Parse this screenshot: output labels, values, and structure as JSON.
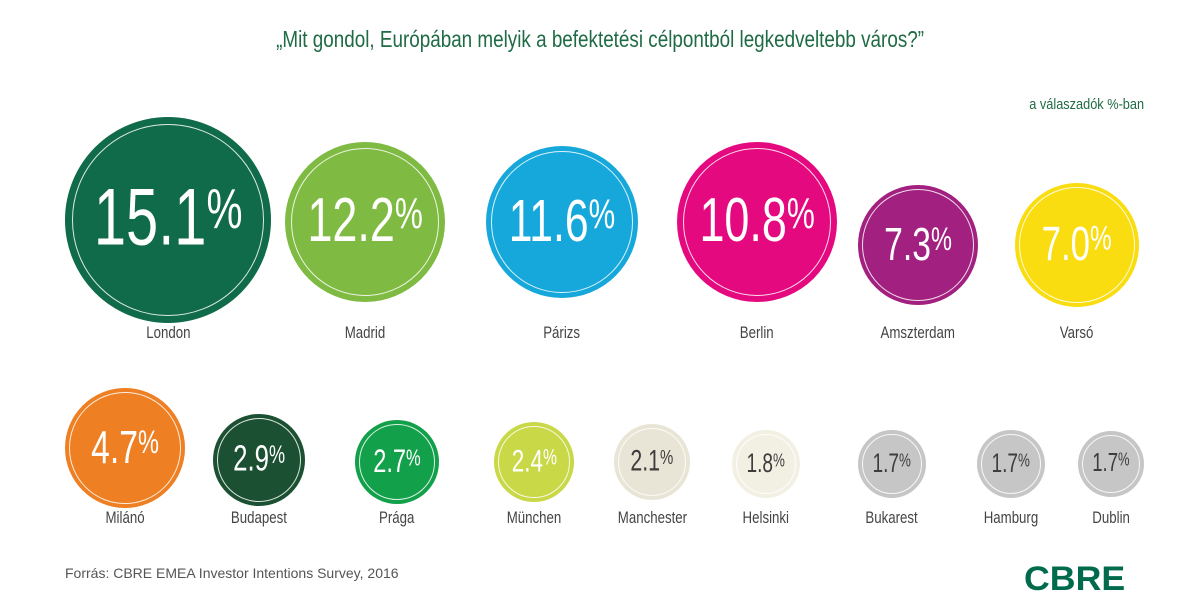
{
  "chart_data": {
    "type": "bubble",
    "title": "„Mit gondol, Európában melyik a befektetési célpontból legkedveltebb város?”",
    "unit_note": "a válaszadók %-ban",
    "categories": [
      "London",
      "Madrid",
      "Párizs",
      "Berlin",
      "Amszterdam",
      "Varsó",
      "Milánó",
      "Budapest",
      "Prága",
      "München",
      "Manchester",
      "Helsinki",
      "Bukarest",
      "Hamburg",
      "Dublin"
    ],
    "values": [
      15.1,
      12.2,
      11.6,
      10.8,
      7.3,
      7.0,
      4.7,
      2.9,
      2.7,
      2.4,
      2.1,
      1.8,
      1.7,
      1.7,
      1.7
    ],
    "value_labels": [
      "15.1",
      "12.2",
      "11.6",
      "10.8",
      "7.3",
      "7.0",
      "4.7",
      "2.9",
      "2.7",
      "2.4",
      "2.1",
      "1.8",
      "1.7",
      "1.7",
      "1.7"
    ],
    "percent_sign": "%",
    "colors": [
      "#106b4a",
      "#7fba42",
      "#17a8db",
      "#e5097f",
      "#a2207f",
      "#f9dd10",
      "#ee7f22",
      "#1b5032",
      "#13a04a",
      "#c8d846",
      "#e9e5d6",
      "#f2f0e3",
      "#c6c6c6",
      "#c6c6c6",
      "#c6c6c6"
    ],
    "text_colors": [
      "#fff",
      "#fff",
      "#fff",
      "#fff",
      "#fff",
      "#fff",
      "#fff",
      "#fff",
      "#fff",
      "#fff",
      "#3d3d3d",
      "#3d3d3d",
      "#3d3d3d",
      "#3d3d3d",
      "#3d3d3d"
    ]
  },
  "footer": {
    "source": "Forrás: CBRE EMEA Investor Intentions Survey, 2016",
    "logo": "CBRE"
  }
}
